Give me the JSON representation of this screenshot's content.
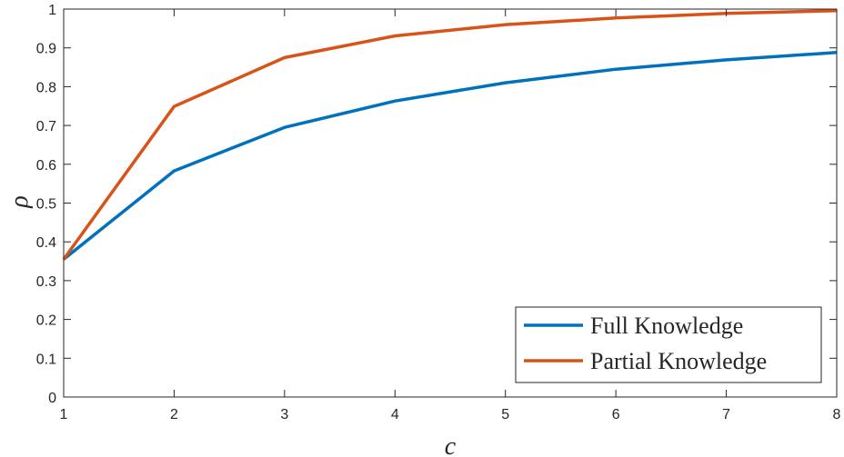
{
  "chart_data": {
    "type": "line",
    "xlabel": "c",
    "ylabel": "ρ",
    "xlim": [
      1,
      8
    ],
    "ylim": [
      0,
      1
    ],
    "x_ticks": [
      "1",
      "2",
      "3",
      "4",
      "5",
      "6",
      "7",
      "8"
    ],
    "y_ticks": [
      "0",
      "0.1",
      "0.2",
      "0.3",
      "0.4",
      "0.5",
      "0.6",
      "0.7",
      "0.8",
      "0.9",
      "1"
    ],
    "x": [
      1,
      2,
      3,
      4,
      5,
      6,
      7,
      8
    ],
    "series": [
      {
        "name": "Full Knowledge",
        "color": "#0072BD",
        "values": [
          0.355,
          0.583,
          0.695,
          0.763,
          0.81,
          0.845,
          0.869,
          0.888
        ]
      },
      {
        "name": "Partial Knowledge",
        "color": "#D95319",
        "values": [
          0.355,
          0.749,
          0.875,
          0.931,
          0.96,
          0.977,
          0.989,
          0.996
        ]
      }
    ],
    "grid": false,
    "legend_position": "bottom-right"
  }
}
